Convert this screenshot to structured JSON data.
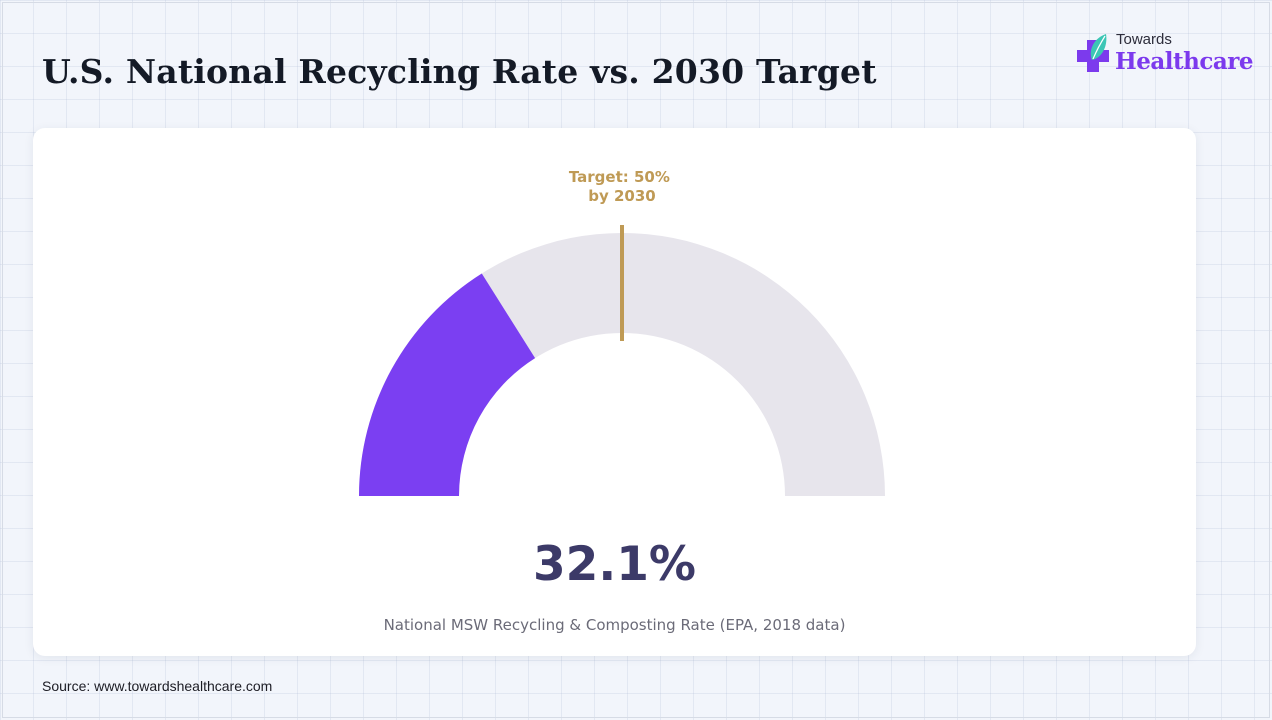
{
  "header": {
    "title": "U.S. National Recycling Rate vs. 2030 Target"
  },
  "logo": {
    "line1": "Towards",
    "line2": "Healthcare",
    "icon": "medical-cross-leaf-icon",
    "colors": {
      "cross": "#7c3aed",
      "leaf": "#3cc6b5"
    }
  },
  "chart_data": {
    "type": "gauge",
    "value": 32.1,
    "min": 0,
    "max": 100,
    "value_label": "32.1%",
    "target": 50,
    "target_label_lines": [
      "Target: 50%",
      "by 2030"
    ],
    "caption": "National MSW Recycling & Composting Rate (EPA, 2018 data)",
    "colors": {
      "value": "#7b3ff2",
      "track": "#e7e5ec",
      "target": "#bf9a55",
      "value_text": "#3c3a68"
    }
  },
  "footer": {
    "source": "Source: www.towardshealthcare.com"
  }
}
